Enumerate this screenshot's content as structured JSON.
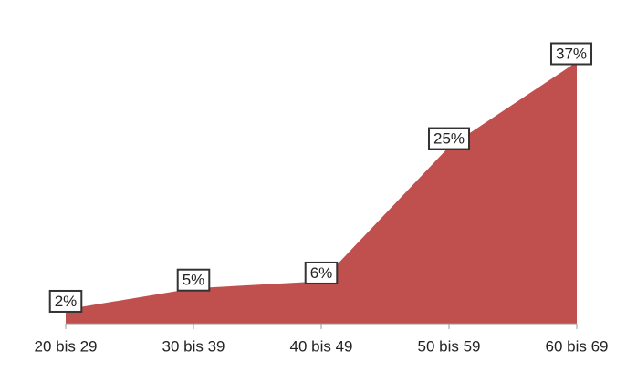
{
  "chart_data": {
    "type": "area",
    "categories": [
      "20 bis 29",
      "30 bis 39",
      "40 bis 49",
      "50 bis 59",
      "60 bis 69"
    ],
    "values": [
      2,
      5,
      6,
      25,
      37
    ],
    "value_labels": [
      "2%",
      "5%",
      "6%",
      "25%",
      "37%"
    ],
    "color": "#c0504d"
  }
}
